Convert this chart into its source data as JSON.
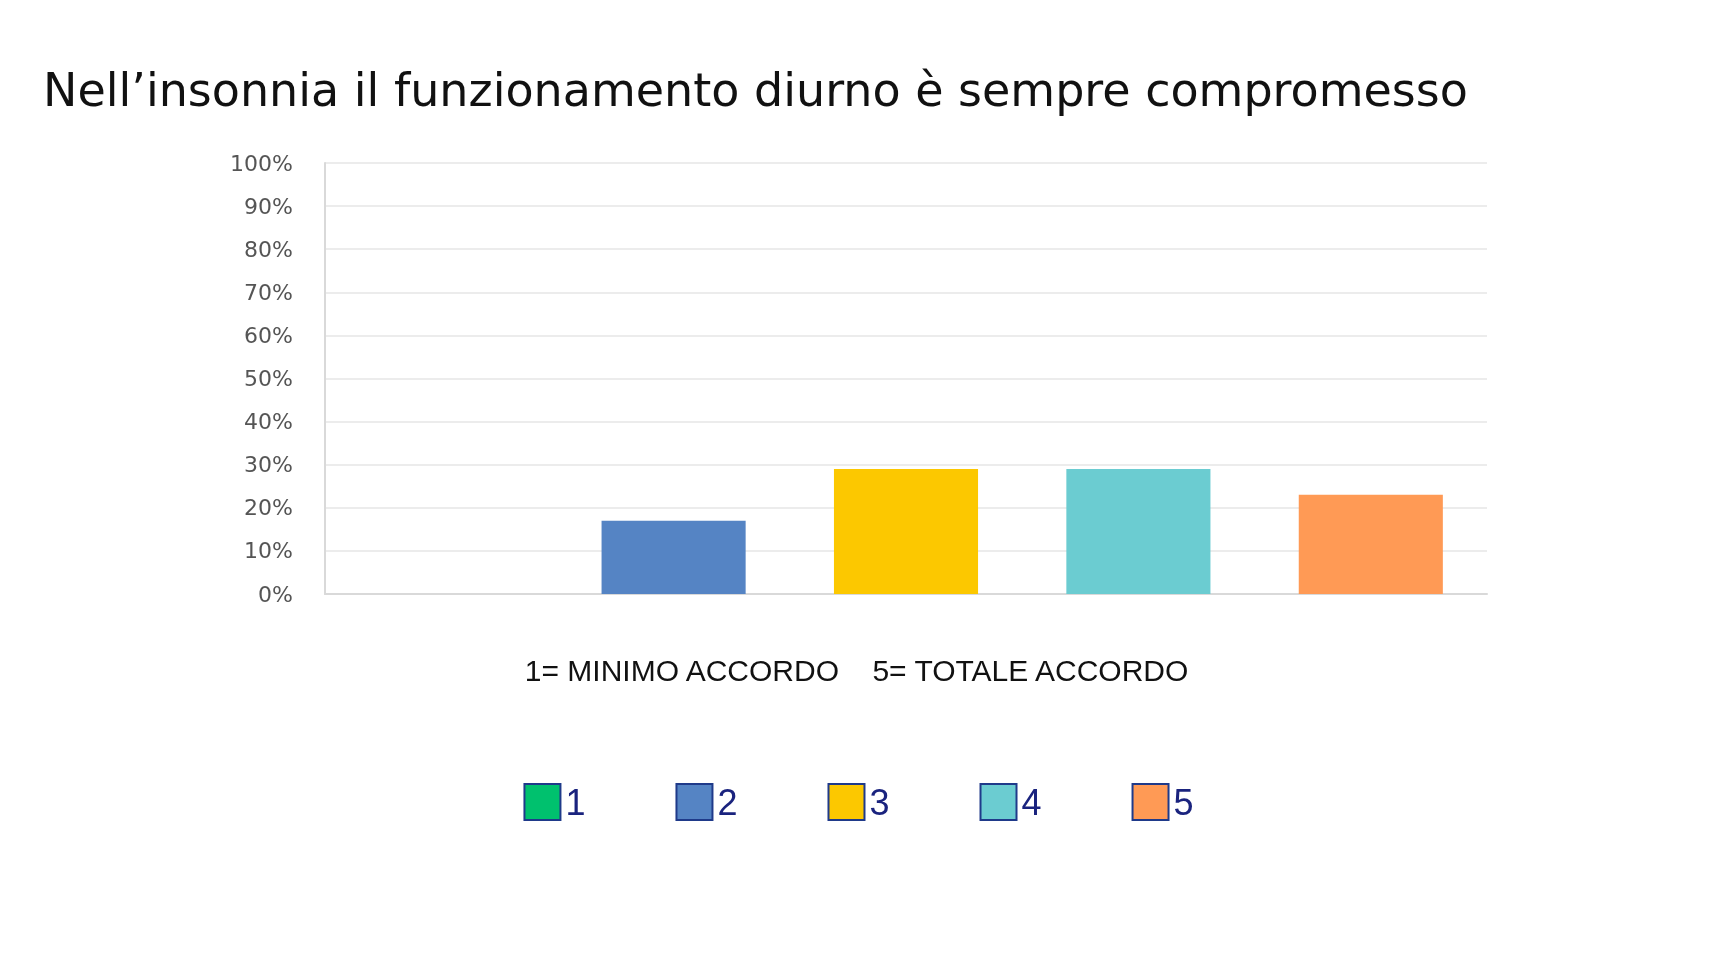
{
  "chart_data": {
    "type": "bar",
    "title": "Nell’insonnia il funzionamento diurno è sempre compromesso",
    "categories": [
      null,
      null,
      null,
      null,
      null
    ],
    "series": [
      {
        "name": "1",
        "color": "#00c16e",
        "values": [
          0,
          null,
          null,
          null,
          null
        ]
      },
      {
        "name": "2",
        "color": "#5584c4",
        "values": [
          null,
          17,
          null,
          null,
          null
        ]
      },
      {
        "name": "3",
        "color": "#fcc800",
        "values": [
          null,
          null,
          29,
          null,
          null
        ]
      },
      {
        "name": "4",
        "color": "#6bccd1",
        "values": [
          null,
          null,
          null,
          29,
          null
        ]
      },
      {
        "name": "5",
        "color": "#ff9a55",
        "values": [
          null,
          null,
          null,
          null,
          23
        ]
      }
    ],
    "stacked": true,
    "ylim": [
      0,
      100
    ],
    "yticks": [
      {
        "value": 0,
        "label": "0%"
      },
      {
        "value": 10,
        "label": "10%"
      },
      {
        "value": 20,
        "label": "20%"
      },
      {
        "value": 30,
        "label": "30%"
      },
      {
        "value": 40,
        "label": "40%"
      },
      {
        "value": 50,
        "label": "50%"
      },
      {
        "value": 60,
        "label": "60%"
      },
      {
        "value": 70,
        "label": "70%"
      },
      {
        "value": 80,
        "label": "80%"
      },
      {
        "value": 90,
        "label": "90%"
      },
      {
        "value": 100,
        "label": "100%"
      }
    ],
    "grid": "y",
    "legend": "bottom",
    "annotations": [
      "1= MINIMO ACCORDO    5= TOTALE ACCORDO"
    ]
  }
}
